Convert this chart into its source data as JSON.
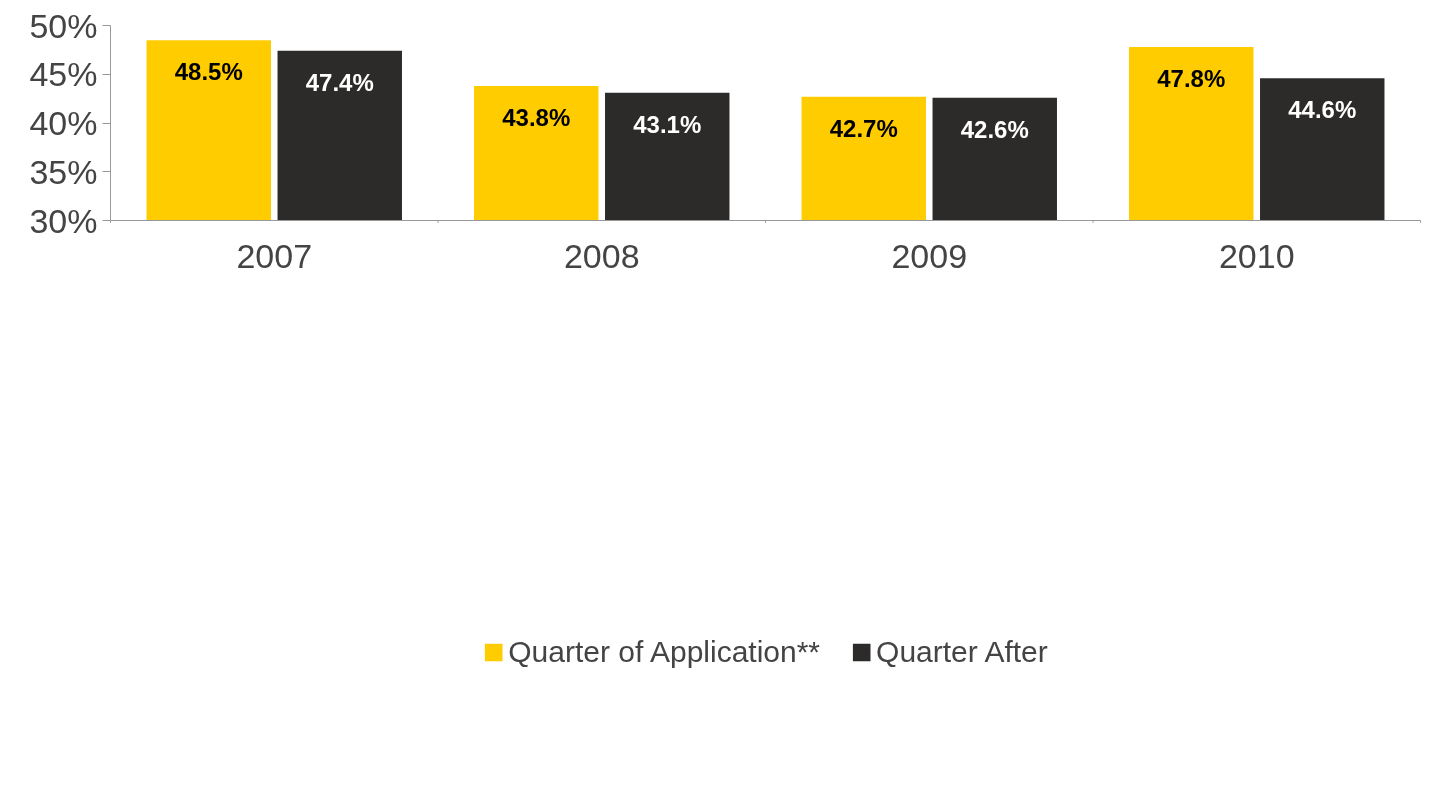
{
  "chart_data": {
    "type": "bar",
    "categories": [
      "2007",
      "2008",
      "2009",
      "2010"
    ],
    "series": [
      {
        "name": "Quarter of Application**",
        "color": "#ffcc00",
        "values": [
          48.5,
          43.8,
          42.7,
          47.8
        ],
        "value_labels": [
          "48.5%",
          "43.8%",
          "42.7%",
          "47.8%"
        ]
      },
      {
        "name": "Quarter After",
        "color": "#2d2b29",
        "values": [
          47.4,
          43.1,
          42.6,
          44.6
        ],
        "value_labels": [
          "47.4%",
          "43.1%",
          "42.6%",
          "44.6%"
        ]
      }
    ],
    "ylim": [
      30,
      50
    ],
    "yticks": [
      {
        "value": 30,
        "label": "30%"
      },
      {
        "value": 35,
        "label": "35%"
      },
      {
        "value": 40,
        "label": "40%"
      },
      {
        "value": 45,
        "label": "45%"
      },
      {
        "value": 50,
        "label": "50%"
      }
    ],
    "grid": false,
    "legend": "bottom"
  }
}
